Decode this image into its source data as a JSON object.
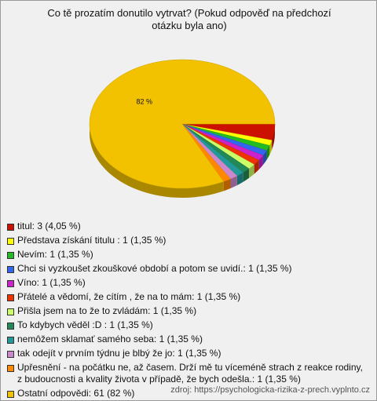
{
  "chart_data": {
    "type": "pie",
    "title": "Co tě prozatím donutilo vytrvat? (Pokud odpověď na předchozí otázku byla ano)",
    "categories": [
      "titul: 3 (4,05 %)",
      "Představa získání titulu : 1 (1,35 %)",
      "Nevím: 1 (1,35 %)",
      "Chci si vyzkoušet zkouškové období a potom se uvidí.: 1 (1,35 %)",
      "Víno: 1 (1,35 %)",
      "Přátelé a vědomí, že cítím , že na to mám: 1 (1,35 %)",
      "Přišla jsem na to že to zvládám: 1 (1,35 %)",
      "To kdybych věděl :D : 1 (1,35 %)",
      "nemôžem sklamať samého seba: 1 (1,35 %)",
      "tak odejít v prvním týdnu je blbý že jo: 1 (1,35 %)",
      "Upřesnění - na počátku ne, až časem. Drží mě tu víceméně strach z reakce rodiny, z budoucnosti a kvality života v případě, že bych odešla.: 1 (1,35 %)",
      "Ostatní odpovědi: 61 (82 %)"
    ],
    "values": [
      4.05,
      1.35,
      1.35,
      1.35,
      1.35,
      1.35,
      1.35,
      1.35,
      1.35,
      1.35,
      1.35,
      82
    ],
    "value_labels": [
      null,
      null,
      null,
      null,
      null,
      null,
      null,
      null,
      null,
      null,
      null,
      "82 %"
    ],
    "colors": [
      "#cc1100",
      "#ffff00",
      "#22bb22",
      "#3366ee",
      "#cc22cc",
      "#ee3300",
      "#ccff66",
      "#228855",
      "#229999",
      "#cc88cc",
      "#ff8800",
      "#f2c200"
    ],
    "source": "zdroj: https://psychologicka-rizika-z-prech.vyplnto.cz"
  }
}
